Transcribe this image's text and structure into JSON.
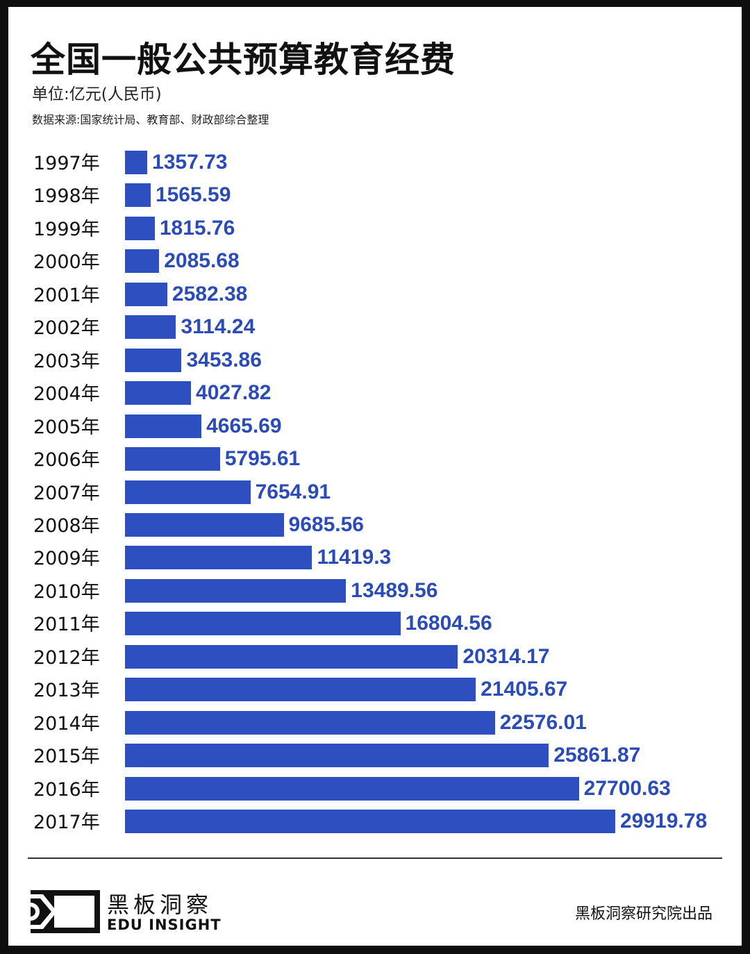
{
  "chart_data": {
    "type": "bar",
    "orientation": "horizontal",
    "title": "全国一般公共预算教育经费",
    "unit": "单位:亿元(人民币)",
    "source": "数据来源:国家统计局、教育部、财政部综合整理",
    "categories": [
      "1997年",
      "1998年",
      "1999年",
      "2000年",
      "2001年",
      "2002年",
      "2003年",
      "2004年",
      "2005年",
      "2006年",
      "2007年",
      "2008年",
      "2009年",
      "2010年",
      "2011年",
      "2012年",
      "2013年",
      "2014年",
      "2015年",
      "2016年",
      "2017年"
    ],
    "values": [
      1357.73,
      1565.59,
      1815.76,
      2085.68,
      2582.38,
      3114.24,
      3453.86,
      4027.82,
      4665.69,
      5795.61,
      7654.91,
      9685.56,
      11419.3,
      13489.56,
      16804.56,
      20314.17,
      21405.67,
      22576.01,
      25861.87,
      27700.63,
      29919.78
    ],
    "value_labels": [
      "1357.73",
      "1565.59",
      "1815.76",
      "2085.68",
      "2582.38",
      "3114.24",
      "3453.86",
      "4027.82",
      "4665.69",
      "5795.61",
      "7654.91",
      "9685.56",
      "11419.3",
      "13489.56",
      "16804.56",
      "20314.17",
      "21405.67",
      "22576.01",
      "25861.87",
      "27700.63",
      "29919.78"
    ],
    "xlim": [
      0,
      29919.78
    ],
    "grid": false,
    "colors": {
      "bar": "#2d4fbf",
      "label": "#2b4cb8"
    }
  },
  "footer": {
    "brand_cn": "黑板洞察",
    "brand_en": "EDU INSIGHT",
    "credit": "黑板洞察研究院出品"
  }
}
